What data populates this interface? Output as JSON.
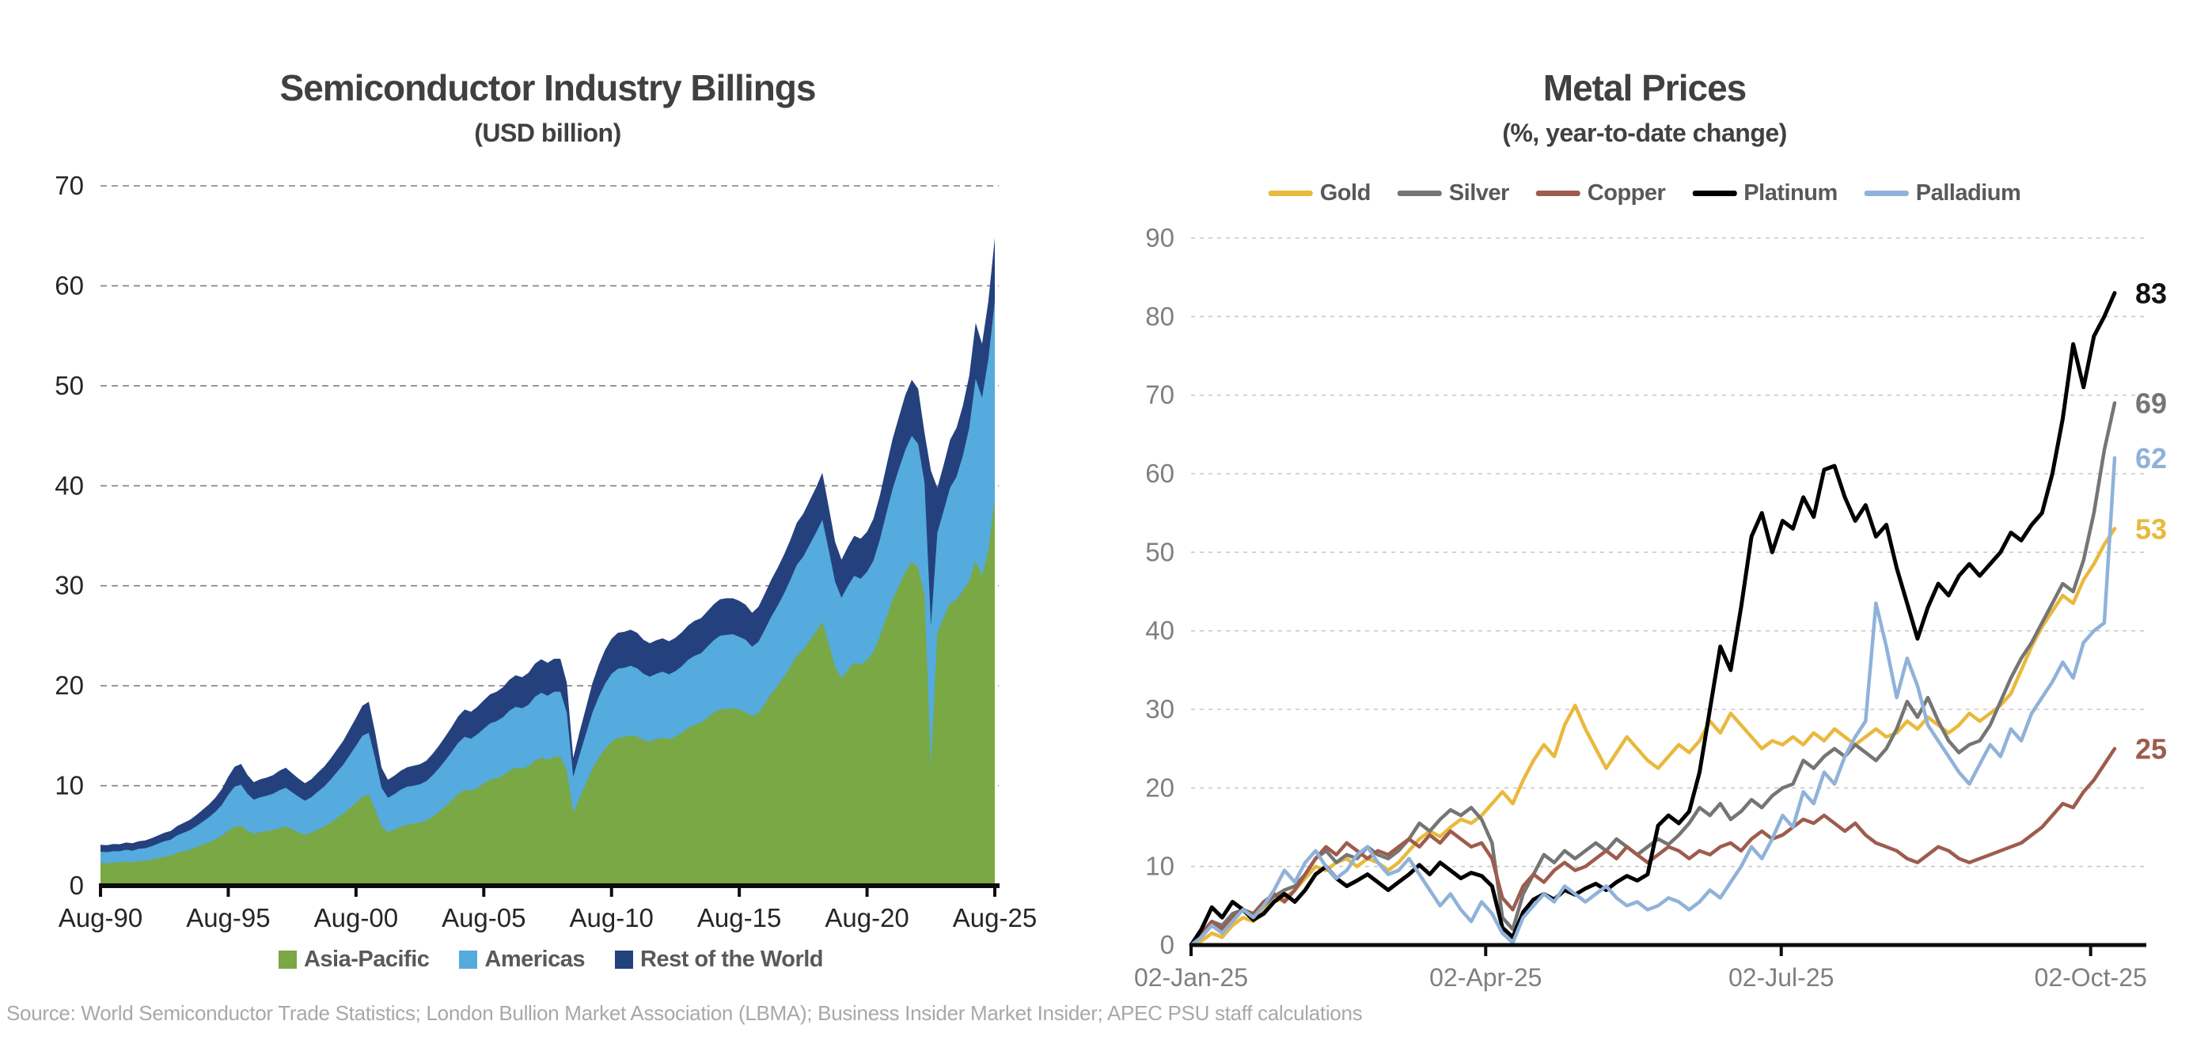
{
  "source_note": "Source: World Semiconductor Trade Statistics; London Bullion Market Association (LBMA); Business Insider Market Insider; APEC PSU staff calculations",
  "chart_data": [
    {
      "type": "area",
      "stacked": true,
      "title": "Semiconductor Industry Billings",
      "subtitle": "(USD billion)",
      "ylim": [
        0,
        70
      ],
      "ytick_labels": [
        "0",
        "10",
        "20",
        "30",
        "40",
        "50",
        "60",
        "70"
      ],
      "xtick_labels": [
        "Aug-90",
        "Aug-95",
        "Aug-00",
        "Aug-05",
        "Aug-10",
        "Aug-15",
        "Aug-20",
        "Aug-25"
      ],
      "x_range": "monthly Aug-1990 to Aug-2025 (sampled quarterly)",
      "grid": "dashed",
      "legend_position": "bottom",
      "axis_color": "#0d0d0d",
      "grid_color": "#7f7f7f",
      "tick_label_color": "#262626",
      "series": [
        {
          "name": "Asia-Pacific",
          "color": "#79A845",
          "values": [
            2.3,
            2.25,
            2.3,
            2.35,
            2.4,
            2.35,
            2.45,
            2.5,
            2.6,
            2.75,
            2.9,
            3.0,
            3.3,
            3.45,
            3.6,
            3.85,
            4.1,
            4.35,
            4.65,
            5.0,
            5.5,
            5.9,
            6.0,
            5.5,
            5.2,
            5.35,
            5.45,
            5.55,
            5.75,
            5.9,
            5.65,
            5.35,
            5.1,
            5.3,
            5.6,
            5.9,
            6.3,
            6.75,
            7.2,
            7.75,
            8.3,
            8.9,
            9.1,
            7.6,
            5.9,
            5.35,
            5.6,
            5.9,
            6.1,
            6.2,
            6.3,
            6.5,
            6.9,
            7.4,
            7.95,
            8.55,
            9.2,
            9.6,
            9.5,
            9.8,
            10.2,
            10.6,
            10.75,
            11.0,
            11.5,
            11.8,
            11.7,
            11.95,
            12.5,
            12.8,
            12.6,
            12.9,
            12.9,
            11.5,
            7.3,
            8.8,
            10.2,
            11.7,
            12.8,
            13.7,
            14.4,
            14.8,
            14.9,
            15.05,
            14.9,
            14.6,
            14.4,
            14.65,
            14.8,
            14.65,
            14.9,
            15.3,
            15.8,
            16.1,
            16.3,
            16.8,
            17.3,
            17.6,
            17.7,
            17.75,
            17.6,
            17.4,
            16.9,
            17.3,
            18.2,
            19.2,
            20.0,
            20.9,
            21.9,
            23.0,
            23.6,
            24.5,
            25.4,
            26.4,
            24.2,
            21.9,
            20.7,
            21.6,
            22.3,
            22.1,
            22.6,
            23.4,
            24.9,
            26.8,
            28.6,
            30.0,
            31.4,
            32.4,
            31.8,
            29.0,
            12.0,
            25.3,
            26.8,
            28.3,
            28.6,
            29.5,
            30.5,
            32.5,
            31.0,
            33.5,
            38.8
          ]
        },
        {
          "name": "Americas",
          "color": "#55AADE",
          "values": [
            1.1,
            1.1,
            1.15,
            1.1,
            1.2,
            1.15,
            1.25,
            1.25,
            1.35,
            1.45,
            1.55,
            1.6,
            1.75,
            1.85,
            1.95,
            2.1,
            2.3,
            2.5,
            2.75,
            3.1,
            3.6,
            4.0,
            4.1,
            3.7,
            3.4,
            3.5,
            3.55,
            3.65,
            3.8,
            3.9,
            3.7,
            3.55,
            3.4,
            3.55,
            3.8,
            4.0,
            4.3,
            4.6,
            4.9,
            5.3,
            5.7,
            6.1,
            6.2,
            5.1,
            3.9,
            3.45,
            3.55,
            3.7,
            3.8,
            3.8,
            3.85,
            3.95,
            4.15,
            4.35,
            4.6,
            4.85,
            5.1,
            5.3,
            5.2,
            5.35,
            5.5,
            5.65,
            5.7,
            5.85,
            6.0,
            6.1,
            6.05,
            6.15,
            6.4,
            6.5,
            6.4,
            6.5,
            6.5,
            5.8,
            3.6,
            4.3,
            5.0,
            5.6,
            6.1,
            6.5,
            6.8,
            6.9,
            6.9,
            6.95,
            6.85,
            6.6,
            6.5,
            6.55,
            6.6,
            6.5,
            6.55,
            6.65,
            6.8,
            6.9,
            6.95,
            7.1,
            7.25,
            7.4,
            7.4,
            7.4,
            7.3,
            7.2,
            7.0,
            7.1,
            7.4,
            7.7,
            8.0,
            8.3,
            8.7,
            9.1,
            9.3,
            9.6,
            9.9,
            10.2,
            9.4,
            8.5,
            8.1,
            8.4,
            8.7,
            8.6,
            8.8,
            9.1,
            9.7,
            10.4,
            11.1,
            11.7,
            12.2,
            12.6,
            12.4,
            11.3,
            14.0,
            10.0,
            10.7,
            11.5,
            12.3,
            13.5,
            15.3,
            18.2,
            17.8,
            19.2,
            19.7
          ]
        },
        {
          "name": "Rest of the World",
          "color": "#24417E",
          "values": [
            0.7,
            0.7,
            0.72,
            0.7,
            0.72,
            0.75,
            0.75,
            0.78,
            0.8,
            0.82,
            0.85,
            0.88,
            0.92,
            0.98,
            1.05,
            1.12,
            1.2,
            1.3,
            1.42,
            1.58,
            1.8,
            2.0,
            2.08,
            1.9,
            1.75,
            1.8,
            1.82,
            1.85,
            1.95,
            2.0,
            1.9,
            1.82,
            1.75,
            1.8,
            1.9,
            2.0,
            2.1,
            2.25,
            2.4,
            2.6,
            2.8,
            3.0,
            3.1,
            2.6,
            2.0,
            1.8,
            1.85,
            1.9,
            1.95,
            2.0,
            2.0,
            2.05,
            2.15,
            2.28,
            2.4,
            2.5,
            2.65,
            2.72,
            2.7,
            2.75,
            2.85,
            2.9,
            2.95,
            3.0,
            3.1,
            3.15,
            3.1,
            3.2,
            3.3,
            3.35,
            3.3,
            3.3,
            3.3,
            3.0,
            1.9,
            2.3,
            2.6,
            2.95,
            3.2,
            3.4,
            3.5,
            3.6,
            3.6,
            3.6,
            3.55,
            3.4,
            3.35,
            3.35,
            3.35,
            3.3,
            3.35,
            3.4,
            3.45,
            3.5,
            3.5,
            3.55,
            3.6,
            3.65,
            3.65,
            3.6,
            3.6,
            3.5,
            3.4,
            3.5,
            3.6,
            3.7,
            3.8,
            3.9,
            4.0,
            4.2,
            4.3,
            4.4,
            4.5,
            4.7,
            4.3,
            4.0,
            3.8,
            3.9,
            4.0,
            4.0,
            4.0,
            4.2,
            4.4,
            4.7,
            5.0,
            5.2,
            5.5,
            5.6,
            5.5,
            5.0,
            15.5,
            4.5,
            4.6,
            4.8,
            4.9,
            5.0,
            5.2,
            5.6,
            5.4,
            5.8,
            6.3
          ]
        }
      ]
    },
    {
      "type": "line",
      "title": "Metal Prices",
      "subtitle": "(%, year-to-date change)",
      "ylim": [
        0,
        90
      ],
      "ytick_labels": [
        "0",
        "10",
        "20",
        "30",
        "40",
        "50",
        "60",
        "70",
        "80",
        "90"
      ],
      "xtick_labels": [
        "02-Jan-25",
        "02-Apr-25",
        "02-Jul-25",
        "02-Oct-25"
      ],
      "x_range": "daily 02-Jan-2025 to 09-Oct-2025",
      "grid": "dotted",
      "legend_position": "top",
      "axis_color": "#0d0d0d",
      "grid_color": "#c8c8c8",
      "tick_label_color": "#7f7f7f",
      "series": [
        {
          "name": "Gold",
          "color": "#E9B93D",
          "end_label": "53",
          "values": [
            0,
            0.5,
            1.5,
            1,
            2.5,
            3.5,
            3,
            4.5,
            5.5,
            6,
            7,
            8.5,
            10,
            9.5,
            10.5,
            11,
            10,
            11,
            10.5,
            9.5,
            10.5,
            12,
            13.5,
            14.5,
            13.8,
            15,
            16,
            15.5,
            16.5,
            18,
            19.5,
            18,
            21,
            23.5,
            25.5,
            24,
            28,
            30.5,
            27.5,
            25,
            22.5,
            24.5,
            26.5,
            25,
            23.5,
            22.5,
            24,
            25.5,
            24.5,
            26,
            28.5,
            27,
            29.5,
            28,
            26.5,
            25,
            26,
            25.5,
            26.5,
            25.5,
            27,
            26,
            27.5,
            26.5,
            25.5,
            26.5,
            27.5,
            26.5,
            27,
            28.5,
            27.5,
            29,
            28,
            27,
            28,
            29.5,
            28.5,
            29.5,
            30.5,
            32,
            35,
            38,
            40.5,
            42.5,
            44.5,
            43.5,
            46.5,
            48.5,
            51,
            53
          ]
        },
        {
          "name": "Silver",
          "color": "#757575",
          "end_label": "69",
          "values": [
            0,
            1.5,
            3,
            2.5,
            4,
            4.5,
            3.8,
            5,
            6.2,
            7,
            7.5,
            9,
            11,
            12,
            10.5,
            11.5,
            11,
            12.5,
            11.5,
            11,
            12,
            13.5,
            15.5,
            14.5,
            16,
            17.2,
            16.5,
            17.5,
            16,
            13,
            3.5,
            2,
            6.5,
            9,
            11.5,
            10.5,
            12,
            11,
            12,
            13,
            12,
            13.5,
            12.5,
            11.5,
            12.5,
            13.5,
            12.8,
            14,
            15.5,
            17.5,
            16.5,
            18,
            16,
            17,
            18.5,
            17.5,
            19,
            20,
            20.5,
            23.5,
            22.5,
            24,
            25,
            24,
            25.5,
            24.5,
            23.5,
            25,
            27.5,
            31,
            29,
            31.5,
            28.5,
            26,
            24.5,
            25.5,
            26,
            28,
            31,
            34,
            36.5,
            38.5,
            41,
            43.5,
            46,
            45,
            49,
            55,
            63,
            69
          ]
        },
        {
          "name": "Copper",
          "color": "#9D5C4D",
          "end_label": "25",
          "values": [
            0,
            1.5,
            3,
            2,
            3.5,
            4.5,
            4,
            5.5,
            6.5,
            5.5,
            7,
            9,
            11,
            12.5,
            11.5,
            13,
            12,
            11,
            12,
            11.5,
            12.5,
            13.5,
            12.5,
            14,
            13,
            14.5,
            13.5,
            12.5,
            13,
            11,
            6,
            4.5,
            7.5,
            9,
            8,
            9.5,
            10.5,
            9.5,
            10,
            11,
            12,
            11,
            12.5,
            11.5,
            10.5,
            11.5,
            12.5,
            12,
            11,
            12,
            11.5,
            12.5,
            13,
            12,
            13.5,
            14.5,
            13.5,
            14,
            15,
            16,
            15.5,
            16.5,
            15.5,
            14.5,
            15.5,
            14,
            13,
            12.5,
            12,
            11,
            10.5,
            11.5,
            12.5,
            12,
            11,
            10.5,
            11,
            11.5,
            12,
            12.5,
            13,
            14,
            15,
            16.5,
            18,
            17.5,
            19.5,
            21,
            23,
            25
          ]
        },
        {
          "name": "Platinum",
          "color": "#000000",
          "end_label": "83",
          "values": [
            0,
            2,
            4.8,
            3.5,
            5.5,
            4.5,
            3.2,
            4,
            5.5,
            6.5,
            5.5,
            7,
            9,
            10,
            8.5,
            7.5,
            8.2,
            9,
            8,
            7,
            8,
            9,
            10.2,
            9,
            10.5,
            9.5,
            8.5,
            9.2,
            8.8,
            7.5,
            2.2,
            1,
            4.2,
            5.8,
            6.5,
            5.8,
            7,
            6.4,
            7.2,
            7.8,
            7,
            8,
            8.8,
            8.2,
            9,
            15.2,
            16.5,
            15.5,
            17,
            22,
            30,
            38,
            35,
            43,
            52,
            55,
            50,
            54,
            53,
            57,
            54.5,
            60.5,
            61,
            57,
            54,
            56,
            52,
            53.5,
            48,
            43.5,
            39,
            43,
            46,
            44.5,
            47,
            48.5,
            47,
            48.5,
            50,
            52.5,
            51.5,
            53.5,
            55,
            60,
            67,
            76.5,
            71,
            77.5,
            80,
            83
          ]
        },
        {
          "name": "Palladium",
          "color": "#8FB2D9",
          "end_label": "62",
          "values": [
            0,
            1,
            2.5,
            1.5,
            3,
            4.5,
            3.5,
            5,
            7,
            9.5,
            8,
            10.5,
            12,
            10,
            8.5,
            9.5,
            11.5,
            12.5,
            10.5,
            9,
            9.5,
            11,
            9,
            7,
            5,
            6.5,
            4.5,
            3,
            5.5,
            4,
            1.5,
            0.3,
            3.5,
            5,
            6.5,
            5.5,
            7.5,
            6.5,
            5.5,
            6.5,
            7.5,
            6,
            5,
            5.5,
            4.5,
            5,
            6,
            5.5,
            4.5,
            5.5,
            7,
            6,
            8,
            10,
            12.5,
            11,
            13.5,
            16.5,
            15,
            19.5,
            18,
            22,
            20.5,
            24,
            26.5,
            28.5,
            43.5,
            38,
            31.5,
            36.5,
            33,
            28,
            26,
            24,
            22,
            20.5,
            23,
            25.5,
            24,
            27.5,
            26,
            29.5,
            31.5,
            33.5,
            36,
            34,
            38.5,
            40,
            41,
            62
          ]
        }
      ]
    }
  ]
}
